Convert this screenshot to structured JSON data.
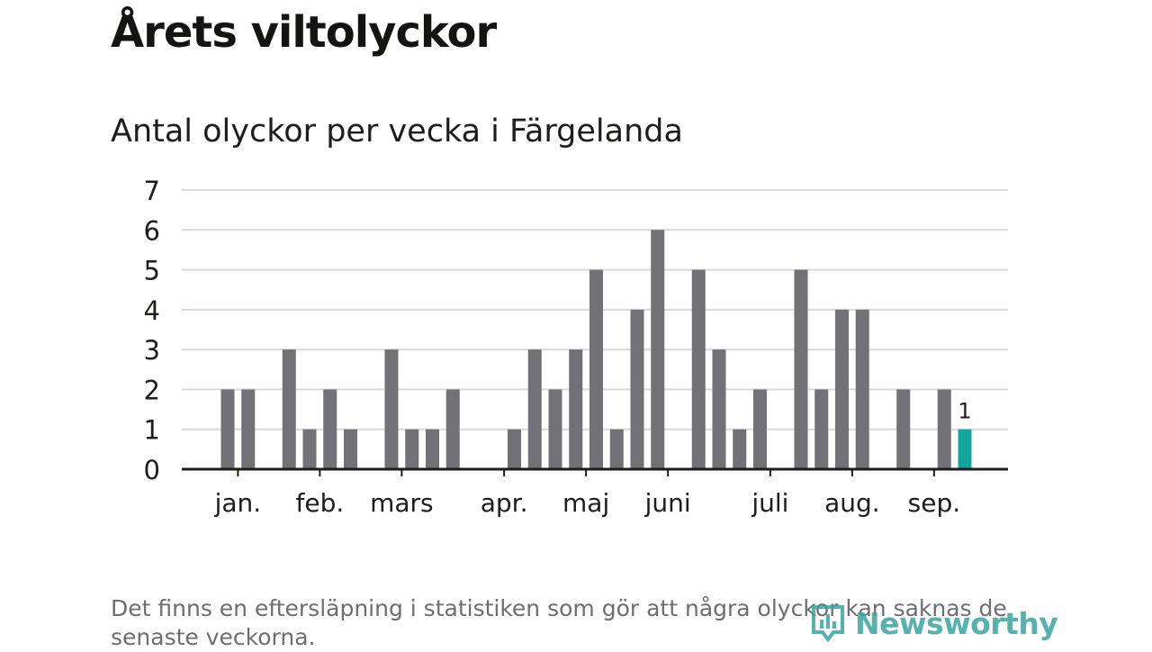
{
  "title": "Årets viltolyckor",
  "subtitle": "Antal olyckor per vecka i Färgelanda",
  "note": "Det finns en eftersläpning i statistiken som gör att några olyckor kan saknas de senaste veckorna.",
  "logo": {
    "text": "Newsworthy",
    "icon": "bar-chart-logo-icon"
  },
  "colors": {
    "bar": "#727176",
    "highlight": "#13a49b",
    "grid": "#d9d9d9",
    "axis": "#1d1d1b",
    "text": "#1d1d1b",
    "logo": "#3aa5a0"
  },
  "chart_data": {
    "type": "bar",
    "ylim": [
      0,
      7
    ],
    "yticks": [
      0,
      1,
      2,
      3,
      4,
      5,
      6,
      7
    ],
    "grid": true,
    "x": [
      1,
      2,
      3,
      4,
      5,
      6,
      7,
      8,
      9,
      10,
      11,
      12,
      13,
      14,
      15,
      16,
      17,
      18,
      19,
      20,
      21,
      22,
      23,
      24,
      25,
      26,
      27,
      28,
      29,
      30,
      31,
      32,
      33,
      34,
      35,
      36,
      37,
      38
    ],
    "values": [
      2,
      2,
      0,
      3,
      1,
      2,
      1,
      0,
      3,
      1,
      1,
      2,
      0,
      0,
      1,
      3,
      2,
      3,
      5,
      1,
      4,
      6,
      0,
      5,
      3,
      1,
      2,
      0,
      5,
      2,
      4,
      4,
      0,
      2,
      0,
      2,
      1,
      0
    ],
    "highlight_index": 36,
    "data_labels": [
      {
        "index": 36,
        "text": "1"
      }
    ],
    "month_labels": [
      {
        "label": "jan.",
        "at": 1.5
      },
      {
        "label": "feb.",
        "at": 5.5
      },
      {
        "label": "mars",
        "at": 9.5
      },
      {
        "label": "apr.",
        "at": 14.5
      },
      {
        "label": "maj",
        "at": 18.5
      },
      {
        "label": "juni",
        "at": 22.5
      },
      {
        "label": "juli",
        "at": 27.5
      },
      {
        "label": "aug.",
        "at": 31.5
      },
      {
        "label": "sep.",
        "at": 35.5
      }
    ]
  }
}
